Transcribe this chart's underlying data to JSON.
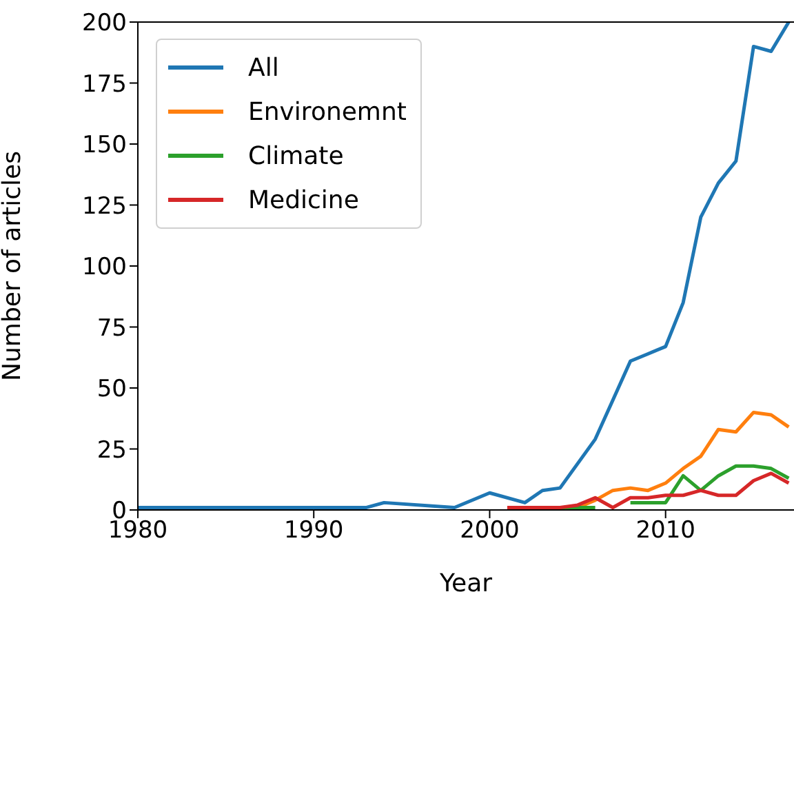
{
  "chart_data": {
    "type": "line",
    "xlabel": "Year",
    "ylabel": "Number of articles",
    "xlim": [
      1980,
      2017.3
    ],
    "xticks": [
      1980,
      1990,
      2000,
      2010
    ],
    "ylim": [
      0,
      200
    ],
    "yticks": [
      0,
      25,
      50,
      75,
      100,
      125,
      150,
      175,
      200
    ],
    "legend": "top left",
    "marker": "none",
    "line_style": "solid",
    "series": [
      {
        "name": "All",
        "color": "#1f77b4",
        "x": [
          1980,
          1993,
          1994,
          1998,
          2000,
          2002,
          2003,
          2004,
          2006,
          2007,
          2008,
          2009,
          2010,
          2011,
          2012,
          2013,
          2014,
          2015,
          2016,
          2017
        ],
        "values": [
          1,
          1,
          3,
          1,
          7,
          3,
          8,
          9,
          29,
          45,
          61,
          64,
          67,
          85,
          120,
          134,
          143,
          190,
          188,
          200
        ]
      },
      {
        "name": "Environemnt",
        "color": "#ff7f0e",
        "x": [
          2003,
          2004,
          2005,
          2006,
          2007,
          2008,
          2009,
          2010,
          2011,
          2012,
          2013,
          2014,
          2015,
          2016,
          2017
        ],
        "values": [
          0,
          0,
          1,
          4,
          8,
          9,
          8,
          11,
          17,
          22,
          33,
          32,
          40,
          39,
          34
        ]
      },
      {
        "name": "Climate",
        "color": "#2ca02c",
        "x": [
          2004,
          2005,
          2006,
          2007,
          2008,
          2009,
          2010,
          2011,
          2012,
          2013,
          2014,
          2015,
          2016,
          2017
        ],
        "values": [
          0,
          1,
          1,
          null,
          3,
          3,
          3,
          14,
          8,
          14,
          18,
          18,
          17,
          13
        ]
      },
      {
        "name": "Medicine",
        "color": "#d62728",
        "x": [
          2001,
          2002,
          2003,
          2004,
          2005,
          2006,
          2007,
          2008,
          2009,
          2010,
          2011,
          2012,
          2013,
          2014,
          2015,
          2016,
          2017
        ],
        "values": [
          1,
          1,
          1,
          1,
          2,
          5,
          1,
          5,
          5,
          6,
          6,
          8,
          6,
          6,
          12,
          15,
          11
        ]
      }
    ]
  }
}
